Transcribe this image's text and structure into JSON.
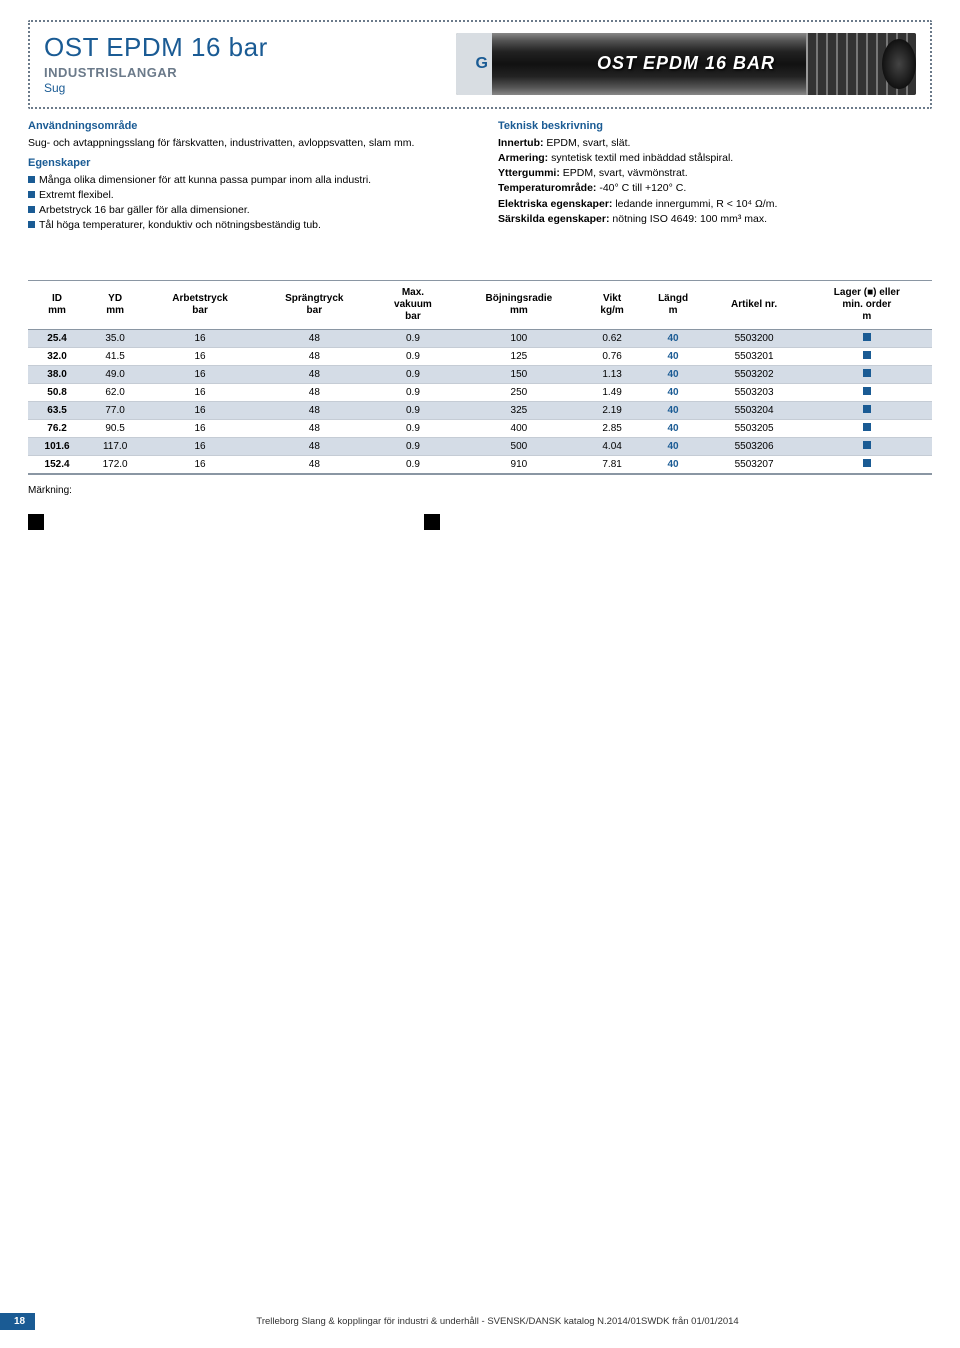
{
  "header": {
    "title": "OST EPDM 16 bar",
    "category": "INDUSTRISLANGAR",
    "type": "Sug",
    "hose_label": "OST EPDM 16 BAR",
    "hose_left": "G"
  },
  "left_col": {
    "h1": "Användningsområde",
    "p1": "Sug- och avtappningsslang för färskvatten, industrivatten, avloppsvatten, slam mm.",
    "h2": "Egenskaper",
    "bullets": [
      "Många olika dimensioner för att kunna passa pumpar inom alla industri.",
      "Extremt flexibel.",
      "Arbetstryck 16 bar gäller för alla dimensioner.",
      "Tål höga temperaturer, konduktiv och nötningsbeständig tub."
    ]
  },
  "right_col": {
    "h1": "Teknisk beskrivning",
    "lines": [
      {
        "label": "Innertub:",
        "val": " EPDM, svart, slät."
      },
      {
        "label": "Armering:",
        "val": " syntetisk textil med inbäddad stålspiral."
      },
      {
        "label": "Yttergummi:",
        "val": " EPDM, svart, vävmönstrat."
      },
      {
        "label": "Temperaturområde:",
        "val": " -40° C till +120° C."
      },
      {
        "label": "Elektriska egenskaper:",
        "val": " ledande innergummi, R < 10⁴ Ω/m."
      },
      {
        "label": "Särskilda egenskaper:",
        "val": " nötning ISO 4649: 100 mm³ max."
      }
    ]
  },
  "table": {
    "columns": [
      {
        "l1": "ID",
        "l2": "mm"
      },
      {
        "l1": "YD",
        "l2": "mm"
      },
      {
        "l1": "Arbetstryck",
        "l2": "bar"
      },
      {
        "l1": "Sprängtryck",
        "l2": "bar"
      },
      {
        "l1": "Max.",
        "l2": "vakuum",
        "l3": "bar"
      },
      {
        "l1": "Böjningsradie",
        "l2": "mm"
      },
      {
        "l1": "Vikt",
        "l2": "kg/m"
      },
      {
        "l1": "Längd",
        "l2": "m"
      },
      {
        "l1": "Artikel nr.",
        "l2": ""
      },
      {
        "l1": "Lager (■) eller",
        "l2": "min. order",
        "l3": "m"
      }
    ],
    "rows": [
      [
        "25.4",
        "35.0",
        "16",
        "48",
        "0.9",
        "100",
        "0.62",
        "40",
        "5503200"
      ],
      [
        "32.0",
        "41.5",
        "16",
        "48",
        "0.9",
        "125",
        "0.76",
        "40",
        "5503201"
      ],
      [
        "38.0",
        "49.0",
        "16",
        "48",
        "0.9",
        "150",
        "1.13",
        "40",
        "5503202"
      ],
      [
        "50.8",
        "62.0",
        "16",
        "48",
        "0.9",
        "250",
        "1.49",
        "40",
        "5503203"
      ],
      [
        "63.5",
        "77.0",
        "16",
        "48",
        "0.9",
        "325",
        "2.19",
        "40",
        "5503204"
      ],
      [
        "76.2",
        "90.5",
        "16",
        "48",
        "0.9",
        "400",
        "2.85",
        "40",
        "5503205"
      ],
      [
        "101.6",
        "117.0",
        "16",
        "48",
        "0.9",
        "500",
        "4.04",
        "40",
        "5503206"
      ],
      [
        "152.4",
        "172.0",
        "16",
        "48",
        "0.9",
        "910",
        "7.81",
        "40",
        "5503207"
      ]
    ]
  },
  "marking_label": "Märkning:",
  "footer": {
    "page": "18",
    "text": "Trelleborg Slang & kopplingar för industri & underhåll - SVENSK/DANSK katalog N.2014/01SWDK från 01/01/2014"
  }
}
